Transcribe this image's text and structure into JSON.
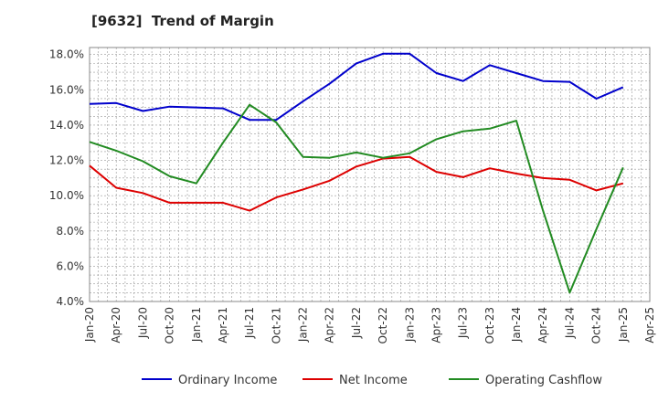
{
  "chart_data": {
    "type": "line",
    "title": "[9632]  Trend of Margin",
    "x": [
      "Jan-20",
      "Apr-20",
      "Jul-20",
      "Oct-20",
      "Jan-21",
      "Apr-21",
      "Jul-21",
      "Oct-21",
      "Jan-22",
      "Apr-22",
      "Jul-22",
      "Oct-22",
      "Jan-23",
      "Apr-23",
      "Jul-23",
      "Oct-23",
      "Jan-24",
      "Apr-24",
      "Jul-24",
      "Oct-24",
      "Jan-25"
    ],
    "x_ticks": [
      "Jan-20",
      "Apr-20",
      "Jul-20",
      "Oct-20",
      "Jan-21",
      "Apr-21",
      "Jul-21",
      "Oct-21",
      "Jan-22",
      "Apr-22",
      "Jul-22",
      "Oct-22",
      "Jan-23",
      "Apr-23",
      "Jul-23",
      "Oct-23",
      "Jan-24",
      "Apr-24",
      "Jul-24",
      "Oct-24",
      "Jan-25",
      "Apr-25"
    ],
    "y_ticks": [
      "4.0%",
      "6.0%",
      "8.0%",
      "10.0%",
      "12.0%",
      "14.0%",
      "16.0%",
      "18.0%"
    ],
    "ylim": [
      4,
      18.4
    ],
    "grid": true,
    "legend_position": "bottom",
    "series": [
      {
        "name": "Ordinary Income",
        "color": "#0000cc",
        "values": [
          15.2,
          15.25,
          14.8,
          15.05,
          15.0,
          14.95,
          14.3,
          14.3,
          15.35,
          16.35,
          17.5,
          18.05,
          18.05,
          16.95,
          16.5,
          17.4,
          16.95,
          16.5,
          16.45,
          15.5,
          16.15
        ]
      },
      {
        "name": "Net Income",
        "color": "#dd0000",
        "values": [
          11.7,
          10.45,
          10.15,
          9.6,
          9.6,
          9.6,
          9.15,
          9.9,
          10.35,
          10.85,
          11.65,
          12.1,
          12.2,
          11.35,
          11.05,
          11.55,
          11.25,
          11.0,
          10.9,
          10.3,
          10.7
        ]
      },
      {
        "name": "Operating Cashflow",
        "color": "#228b22",
        "values": [
          13.05,
          12.55,
          11.95,
          11.1,
          10.7,
          13.0,
          15.15,
          14.15,
          12.2,
          12.15,
          12.45,
          12.15,
          12.4,
          13.2,
          13.65,
          13.8,
          14.25,
          9.15,
          4.5,
          8.1,
          11.6
        ]
      }
    ]
  }
}
